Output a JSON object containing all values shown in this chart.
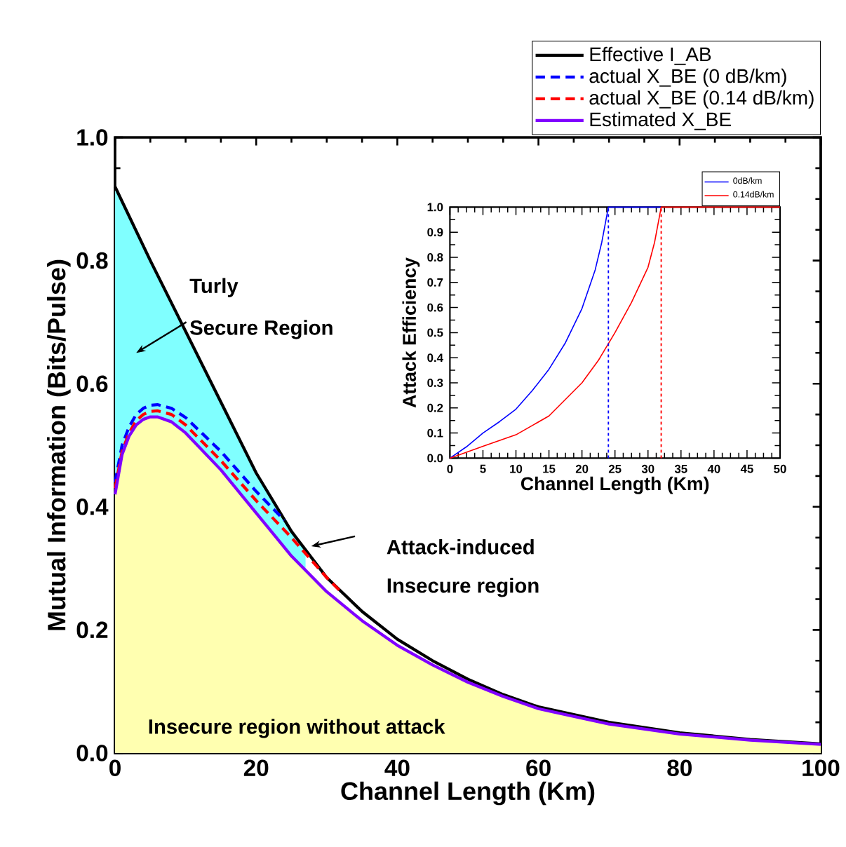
{
  "chart_data": [
    {
      "type": "line",
      "xlabel": "Channel Length (Km)",
      "ylabel": "Mutual Information (Bits/Pulse)",
      "xlim": [
        0,
        100
      ],
      "ylim": [
        0,
        1.0
      ],
      "xticks": [
        0,
        20,
        40,
        60,
        80,
        100
      ],
      "yticks": [
        {
          "value": 0,
          "label": "0.0"
        },
        {
          "value": 0.2,
          "label": "0.2"
        },
        {
          "value": 0.4,
          "label": "0.4"
        },
        {
          "value": 0.6,
          "label": "0.6"
        },
        {
          "value": 0.8,
          "label": "0.8"
        },
        {
          "value": 1.0,
          "label": "1.0"
        }
      ],
      "legend": "top right",
      "marker": "none",
      "series": [
        {
          "type": "area",
          "color": "#80ffff",
          "x": [
            0,
            2.5,
            7.5,
            12.5,
            17.5,
            22.5,
            27
          ],
          "values": [
            0.92,
            0.86,
            0.742,
            0.627,
            0.512,
            0.405,
            0.33
          ]
        },
        {
          "type": "area",
          "color": "#ffffb0",
          "x": [
            0,
            1,
            2,
            3,
            4,
            5,
            6,
            8,
            10,
            15,
            20,
            25,
            30,
            35,
            40,
            45,
            50,
            55,
            60,
            70,
            80,
            90,
            100
          ],
          "values": [
            0.42,
            0.485,
            0.515,
            0.533,
            0.542,
            0.546,
            0.546,
            0.538,
            0.52,
            0.46,
            0.39,
            0.32,
            0.262,
            0.215,
            0.175,
            0.143,
            0.115,
            0.092,
            0.072,
            0.047,
            0.031,
            0.021,
            0.014
          ]
        },
        {
          "name": "Effective I_AB",
          "color": "#000000",
          "line_style": "solid",
          "x": [
            0,
            5,
            10,
            15,
            20,
            25,
            30,
            35,
            40,
            45,
            50,
            55,
            60,
            70,
            80,
            90,
            100
          ],
          "values": [
            0.92,
            0.8,
            0.685,
            0.57,
            0.455,
            0.36,
            0.285,
            0.23,
            0.185,
            0.15,
            0.12,
            0.095,
            0.075,
            0.05,
            0.033,
            0.022,
            0.015
          ]
        },
        {
          "name": "actual X_BE (0 dB/km)",
          "color": "#0000ff",
          "line_style": "dashed",
          "x": [
            0,
            1,
            2,
            3,
            4,
            5,
            6,
            8,
            10,
            15,
            20,
            24
          ],
          "values": [
            0.44,
            0.5,
            0.53,
            0.55,
            0.56,
            0.565,
            0.566,
            0.56,
            0.545,
            0.49,
            0.425,
            0.378
          ]
        },
        {
          "name": "actual X_BE (0.14 dB/km)",
          "color": "#ff0000",
          "line_style": "dashed",
          "x": [
            0,
            1,
            2,
            3,
            4,
            5,
            6,
            8,
            10,
            15,
            20,
            25,
            30,
            32
          ],
          "values": [
            0.43,
            0.49,
            0.52,
            0.54,
            0.55,
            0.555,
            0.556,
            0.55,
            0.533,
            0.475,
            0.41,
            0.35,
            0.285,
            0.262
          ]
        },
        {
          "name": "Estimated X_BE",
          "color": "#8000ff",
          "line_style": "solid",
          "x": [
            0,
            1,
            2,
            3,
            4,
            5,
            6,
            8,
            10,
            15,
            20,
            25,
            30,
            35,
            40,
            45,
            50,
            55,
            60,
            70,
            80,
            90,
            100
          ],
          "values": [
            0.42,
            0.485,
            0.515,
            0.533,
            0.542,
            0.546,
            0.546,
            0.538,
            0.52,
            0.46,
            0.39,
            0.32,
            0.262,
            0.215,
            0.175,
            0.143,
            0.115,
            0.092,
            0.072,
            0.047,
            0.031,
            0.021,
            0.014
          ]
        }
      ],
      "annotations": [
        "Turly",
        "Secure Region",
        "Attack-induced",
        "Insecure region",
        "Insecure region without attack"
      ]
    },
    {
      "type": "line",
      "xlabel": "Channel Length (Km)",
      "ylabel": "Attack Efficiency",
      "xlim": [
        0,
        50
      ],
      "ylim": [
        0,
        1.0
      ],
      "xticks": [
        0,
        5,
        10,
        15,
        20,
        25,
        30,
        35,
        40,
        45,
        50
      ],
      "yticks": [
        {
          "value": 0,
          "label": "0.0"
        },
        {
          "value": 0.1,
          "label": "0.1"
        },
        {
          "value": 0.2,
          "label": "0.2"
        },
        {
          "value": 0.3,
          "label": "0.3"
        },
        {
          "value": 0.4,
          "label": "0.4"
        },
        {
          "value": 0.5,
          "label": "0.5"
        },
        {
          "value": 0.6,
          "label": "0.6"
        },
        {
          "value": 0.7,
          "label": "0.7"
        },
        {
          "value": 0.8,
          "label": "0.8"
        },
        {
          "value": 0.9,
          "label": "0.9"
        },
        {
          "value": 1.0,
          "label": "1.0"
        }
      ],
      "legend": "top right",
      "marker": "none",
      "series": [
        {
          "name": "0dB/km",
          "color": "#0000ff",
          "line_style": "solid",
          "x": [
            0,
            2.5,
            5,
            7.5,
            10,
            12.5,
            15,
            17.5,
            20,
            22,
            23,
            24,
            32
          ],
          "values": [
            0,
            0.045,
            0.1,
            0.145,
            0.195,
            0.27,
            0.354,
            0.46,
            0.596,
            0.75,
            0.86,
            1.0,
            1.0
          ]
        },
        {
          "name": "0.14dB/km",
          "color": "#ff0000",
          "line_style": "solid",
          "x": [
            0,
            5,
            10,
            15,
            20,
            22.5,
            25,
            27.5,
            30,
            31,
            32,
            50
          ],
          "values": [
            0,
            0.047,
            0.093,
            0.168,
            0.3,
            0.39,
            0.5,
            0.62,
            0.76,
            0.86,
            1.0,
            1.0
          ]
        }
      ],
      "ref_lines": [
        {
          "axis": "x",
          "value": 24,
          "color": "#0000ff",
          "line_style": "dotted"
        },
        {
          "axis": "x",
          "value": 32,
          "color": "#ff0000",
          "line_style": "dotted"
        }
      ]
    }
  ]
}
